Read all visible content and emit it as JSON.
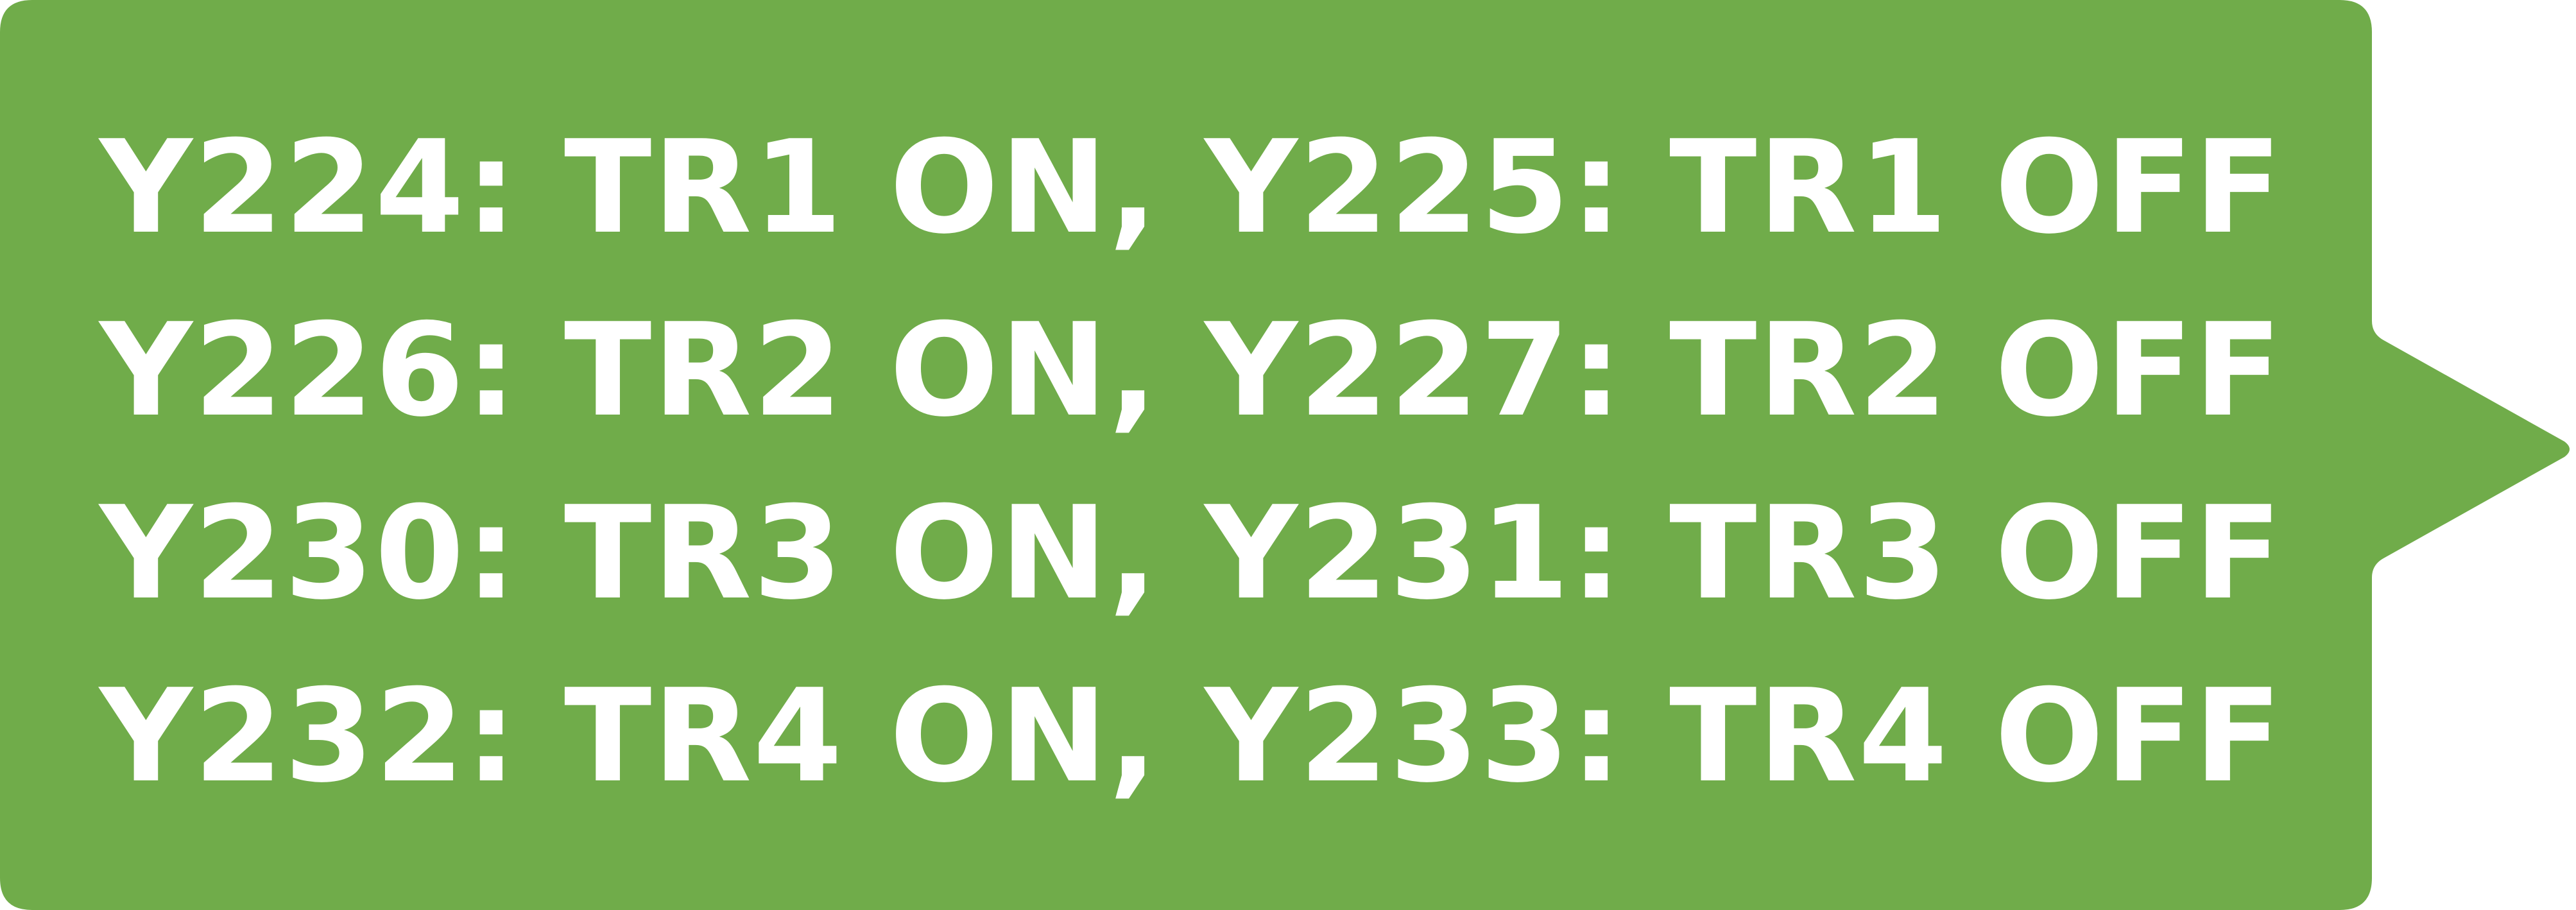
{
  "callout": {
    "fill_color": "#70AC4A",
    "text_color": "#FFFFFF",
    "lines": [
      "Y224: TR1 ON, Y225: TR1 OFF",
      "Y226: TR2 ON, Y227: TR2 OFF",
      "Y230: TR3 ON, Y231: TR3 OFF",
      "Y232: TR4 ON, Y233: TR4 OFF"
    ]
  }
}
